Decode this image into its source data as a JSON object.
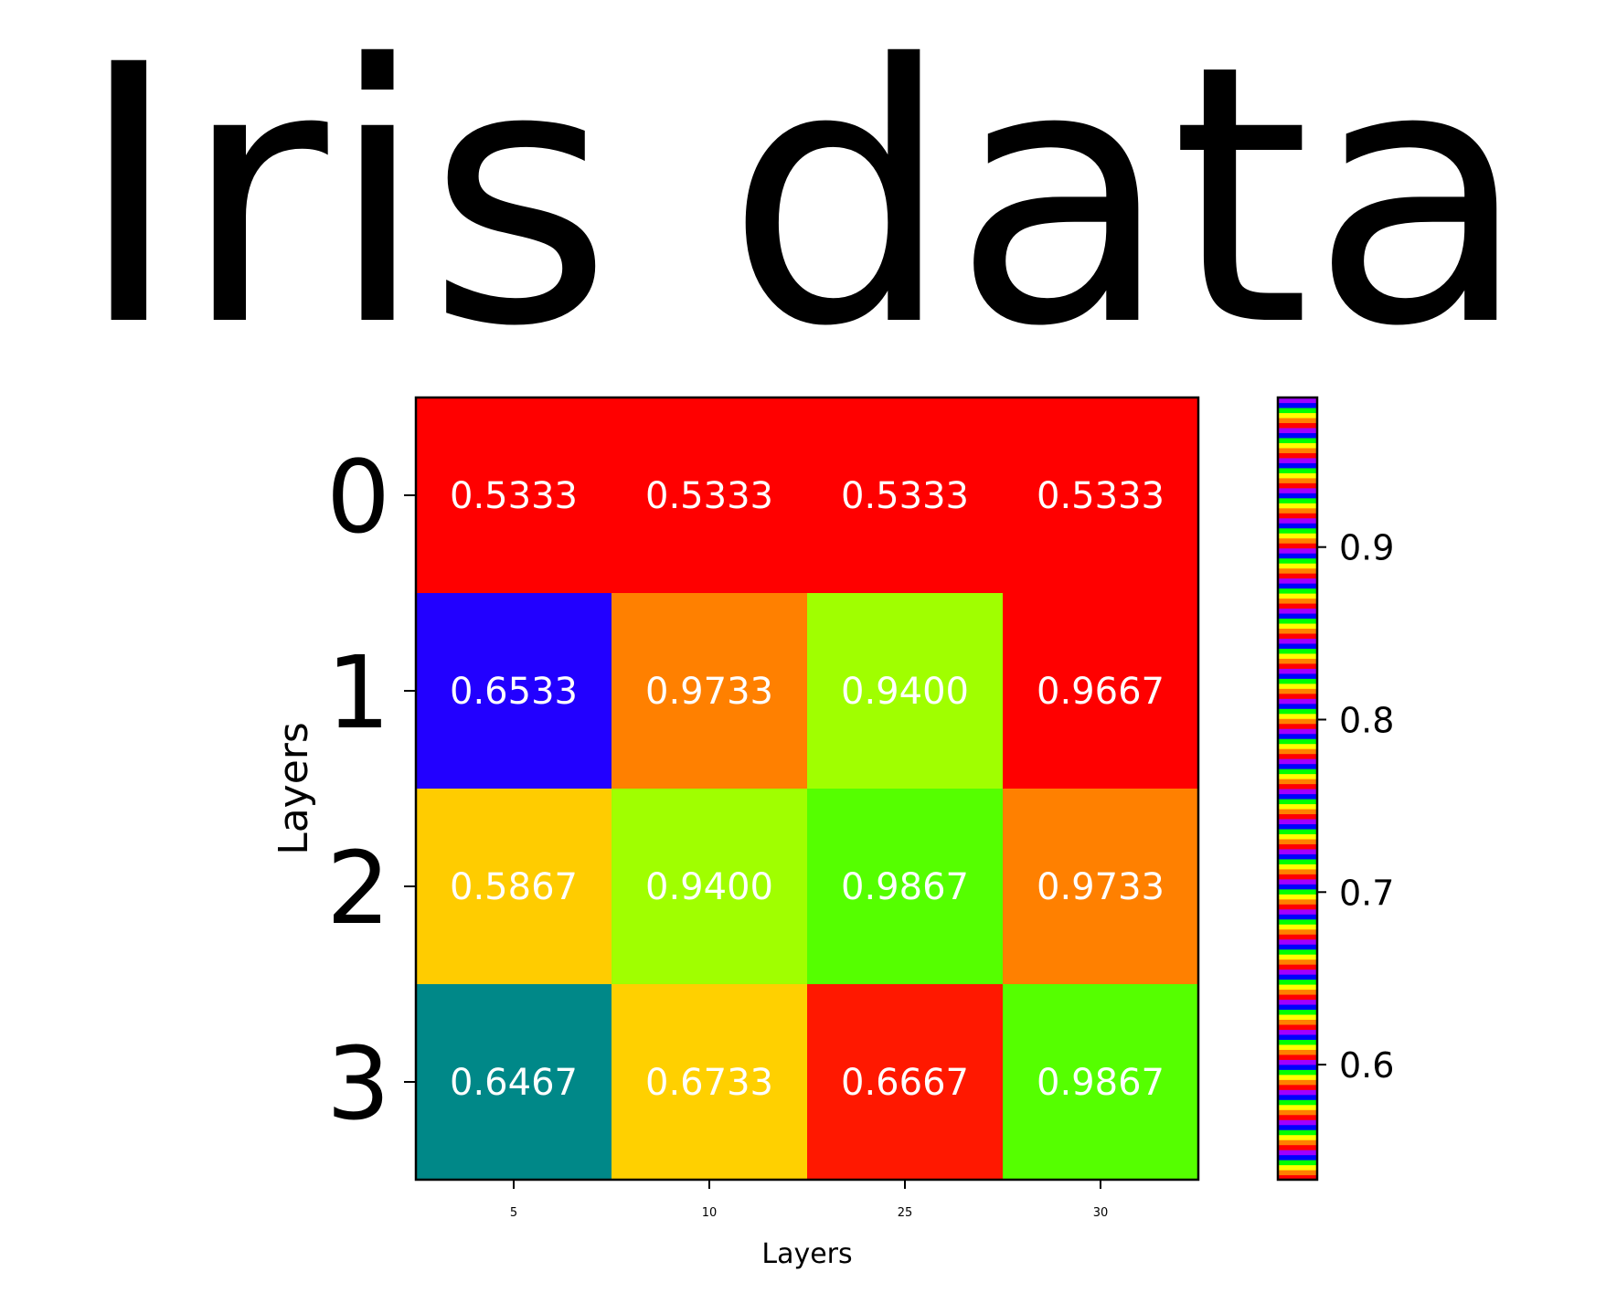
{
  "chart_data": {
    "type": "heatmap",
    "title": "Iris data",
    "xlabel": "Layers",
    "ylabel": "Layers",
    "x_categories": [
      "5",
      "10",
      "25",
      "30"
    ],
    "y_categories": [
      "0",
      "1",
      "2",
      "3"
    ],
    "cell_labels": [
      [
        "0.5333",
        "0.5333",
        "0.5333",
        "0.5333"
      ],
      [
        "0.6533",
        "0.9733",
        "0.9400",
        "0.9667"
      ],
      [
        "0.5867",
        "0.9400",
        "0.9867",
        "0.9733"
      ],
      [
        "0.6467",
        "0.6733",
        "0.6667",
        "0.9867"
      ]
    ],
    "values": [
      [
        0.5333,
        0.5333,
        0.5333,
        0.5333
      ],
      [
        0.6533,
        0.9733,
        0.94,
        0.9667
      ],
      [
        0.5867,
        0.94,
        0.9867,
        0.9733
      ],
      [
        0.6467,
        0.6733,
        0.6667,
        0.9867
      ]
    ],
    "cell_colors": [
      [
        "#ff0000",
        "#ff0000",
        "#ff0000",
        "#ff0000"
      ],
      [
        "#2200ff",
        "#ff8000",
        "#a0ff00",
        "#ff0000"
      ],
      [
        "#ffcc00",
        "#a0ff00",
        "#55ff00",
        "#ff8000"
      ],
      [
        "#008888",
        "#ffd000",
        "#ff1800",
        "#55ff00"
      ]
    ],
    "colorbar": {
      "min": 0.5333,
      "max": 0.9867,
      "ticks": [
        0.6,
        0.7,
        0.8,
        0.9
      ],
      "tick_labels": [
        "0.6",
        "0.7",
        "0.8",
        "0.9"
      ],
      "colormap": "prism",
      "colormap_colors": [
        "#ff0000",
        "#ff8000",
        "#ffff00",
        "#00ff00",
        "#0000ff",
        "#a000ff"
      ]
    },
    "grid": false,
    "cell_text_color": "#ffffff"
  }
}
